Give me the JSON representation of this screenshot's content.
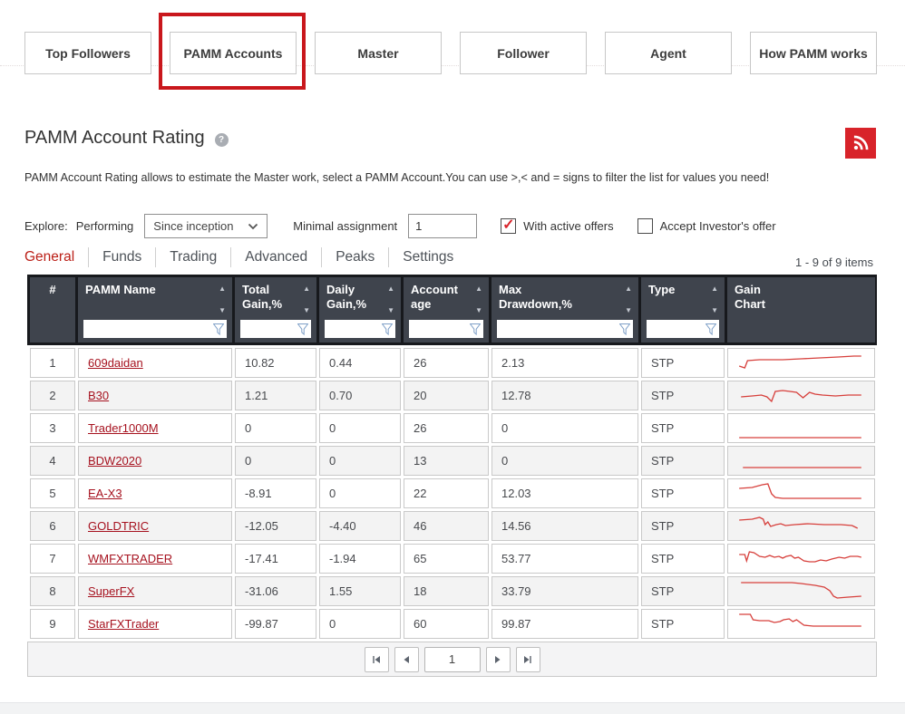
{
  "nav": {
    "buttons": [
      "Top Followers",
      "PAMM Accounts",
      "Master",
      "Follower",
      "Agent",
      "How PAMM works"
    ],
    "highlighted": "PAMM Accounts"
  },
  "header": {
    "title": "PAMM Account Rating",
    "help_glyph": "?",
    "description": "PAMM Account Rating allows to estimate the Master work, select a PAMM Account.You can use >,< and = signs to filter the list for values you need!"
  },
  "filters": {
    "explore_label": "Explore:",
    "mode_label": "Performing",
    "period_value": "Since inception",
    "minimal_assignment_label": "Minimal assignment",
    "minimal_assignment_value": "1",
    "checkbox_active_offers": {
      "label": "With active offers",
      "checked": true
    },
    "checkbox_accept_investor": {
      "label": "Accept Investor's offer",
      "checked": false
    }
  },
  "tabs": {
    "items": [
      "General",
      "Funds",
      "Trading",
      "Advanced",
      "Peaks",
      "Settings"
    ],
    "active": "General"
  },
  "items_count": "1 - 9 of 9 items",
  "icons": {
    "check": "✓",
    "sort_up": "▲",
    "sort_down": "▼"
  },
  "colors": {
    "annotation_red": "#c9171c",
    "rss_red": "#d8232a",
    "link_red": "#a6121f",
    "sparkline_red": "#d7403c",
    "header_cell_bg": "#3f444d",
    "header_frame_bg": "#17191d",
    "active_tab_red": "#bb1f17"
  },
  "table": {
    "columns": [
      {
        "label": "#",
        "sortable": false,
        "filterable": false,
        "align": "center"
      },
      {
        "label": "PAMM Name",
        "sortable": true,
        "filterable": true
      },
      {
        "label": "Total\nGain,%",
        "sortable": true,
        "filterable": true
      },
      {
        "label": "Daily\nGain,%",
        "sortable": true,
        "filterable": true
      },
      {
        "label": "Account\nage",
        "sortable": true,
        "filterable": true
      },
      {
        "label": "Max\nDrawdown,%",
        "sortable": true,
        "filterable": true
      },
      {
        "label": "Type",
        "sortable": true,
        "filterable": true
      },
      {
        "label": "Gain\nChart",
        "sortable": false,
        "filterable": false
      }
    ],
    "rows": [
      {
        "index": "1",
        "name": "609daidan",
        "total_gain": "10.82",
        "daily_gain": "0.44",
        "account_age": "26",
        "max_drawdown": "2.13",
        "type": "STP",
        "sparkline": [
          [
            8,
            18
          ],
          [
            14,
            20
          ],
          [
            17,
            12
          ],
          [
            30,
            11
          ],
          [
            55,
            11
          ],
          [
            75,
            10
          ],
          [
            95,
            9
          ],
          [
            115,
            8
          ],
          [
            132,
            7
          ],
          [
            140,
            7
          ]
        ]
      },
      {
        "index": "2",
        "name": "B30",
        "total_gain": "1.21",
        "daily_gain": "0.70",
        "account_age": "20",
        "max_drawdown": "12.78",
        "type": "STP",
        "sparkline": [
          [
            10,
            16
          ],
          [
            22,
            15
          ],
          [
            32,
            14
          ],
          [
            38,
            16
          ],
          [
            43,
            21
          ],
          [
            47,
            10
          ],
          [
            55,
            9
          ],
          [
            63,
            10
          ],
          [
            70,
            11
          ],
          [
            77,
            17
          ],
          [
            84,
            11
          ],
          [
            90,
            13
          ],
          [
            98,
            14
          ],
          [
            112,
            15
          ],
          [
            126,
            14
          ],
          [
            140,
            14
          ]
        ]
      },
      {
        "index": "3",
        "name": "Trader1000M",
        "total_gain": "0",
        "daily_gain": "0",
        "account_age": "26",
        "max_drawdown": "0",
        "type": "STP",
        "sparkline": [
          [
            8,
            25
          ],
          [
            140,
            25
          ]
        ]
      },
      {
        "index": "4",
        "name": "BDW2020",
        "total_gain": "0",
        "daily_gain": "0",
        "account_age": "13",
        "max_drawdown": "0",
        "type": "STP",
        "sparkline": [
          [
            12,
            22
          ],
          [
            140,
            22
          ]
        ]
      },
      {
        "index": "5",
        "name": "EA-X3",
        "total_gain": "-8.91",
        "daily_gain": "0",
        "account_age": "22",
        "max_drawdown": "12.03",
        "type": "STP",
        "sparkline": [
          [
            8,
            9
          ],
          [
            22,
            8
          ],
          [
            33,
            5
          ],
          [
            39,
            4
          ],
          [
            43,
            15
          ],
          [
            47,
            19
          ],
          [
            55,
            20
          ],
          [
            140,
            20
          ]
        ]
      },
      {
        "index": "6",
        "name": "GOLDTRIC",
        "total_gain": "-12.05",
        "daily_gain": "-4.40",
        "account_age": "46",
        "max_drawdown": "14.56",
        "type": "STP",
        "sparkline": [
          [
            8,
            8
          ],
          [
            22,
            7
          ],
          [
            30,
            5
          ],
          [
            34,
            7
          ],
          [
            36,
            13
          ],
          [
            39,
            10
          ],
          [
            42,
            15
          ],
          [
            48,
            13
          ],
          [
            53,
            12
          ],
          [
            58,
            14
          ],
          [
            68,
            13
          ],
          [
            82,
            12
          ],
          [
            100,
            13
          ],
          [
            118,
            13
          ],
          [
            130,
            14
          ],
          [
            136,
            17
          ]
        ]
      },
      {
        "index": "7",
        "name": "WMFXTRADER",
        "total_gain": "-17.41",
        "daily_gain": "-1.94",
        "account_age": "65",
        "max_drawdown": "53.77",
        "type": "STP",
        "sparkline": [
          [
            8,
            10
          ],
          [
            14,
            10
          ],
          [
            16,
            17
          ],
          [
            19,
            7
          ],
          [
            24,
            8
          ],
          [
            30,
            12
          ],
          [
            36,
            13
          ],
          [
            41,
            11
          ],
          [
            46,
            13
          ],
          [
            51,
            12
          ],
          [
            55,
            14
          ],
          [
            59,
            12
          ],
          [
            64,
            11
          ],
          [
            68,
            14
          ],
          [
            72,
            13
          ],
          [
            78,
            17
          ],
          [
            84,
            18
          ],
          [
            90,
            18
          ],
          [
            96,
            16
          ],
          [
            102,
            17
          ],
          [
            108,
            15
          ],
          [
            116,
            13
          ],
          [
            122,
            14
          ],
          [
            128,
            12
          ],
          [
            136,
            12
          ],
          [
            140,
            13
          ]
        ]
      },
      {
        "index": "8",
        "name": "SuperFX",
        "total_gain": "-31.06",
        "daily_gain": "1.55",
        "account_age": "18",
        "max_drawdown": "33.79",
        "type": "STP",
        "sparkline": [
          [
            10,
            5
          ],
          [
            65,
            5
          ],
          [
            75,
            6
          ],
          [
            90,
            8
          ],
          [
            100,
            10
          ],
          [
            106,
            14
          ],
          [
            110,
            20
          ],
          [
            114,
            22
          ],
          [
            126,
            21
          ],
          [
            140,
            20
          ]
        ]
      },
      {
        "index": "9",
        "name": "StarFXTrader",
        "total_gain": "-99.87",
        "daily_gain": "0",
        "account_age": "60",
        "max_drawdown": "99.87",
        "type": "STP",
        "sparkline": [
          [
            8,
            4
          ],
          [
            20,
            4
          ],
          [
            23,
            10
          ],
          [
            30,
            11
          ],
          [
            40,
            11
          ],
          [
            46,
            13
          ],
          [
            52,
            12
          ],
          [
            56,
            10
          ],
          [
            62,
            9
          ],
          [
            66,
            12
          ],
          [
            70,
            10
          ],
          [
            74,
            13
          ],
          [
            78,
            16
          ],
          [
            88,
            17
          ],
          [
            140,
            17
          ]
        ]
      }
    ]
  },
  "pagination": {
    "page_value": "1"
  }
}
